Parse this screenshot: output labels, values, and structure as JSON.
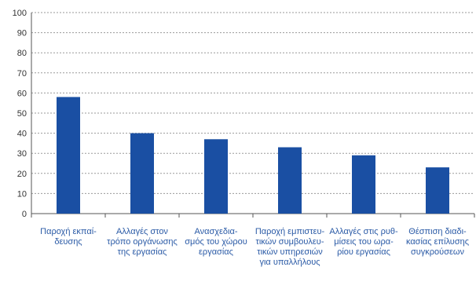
{
  "chart_data": {
    "type": "bar",
    "title": "",
    "xlabel": "",
    "ylabel": "",
    "ylim": [
      0,
      100
    ],
    "yticks": [
      0,
      10,
      20,
      30,
      40,
      50,
      60,
      70,
      80,
      90,
      100
    ],
    "grid": true,
    "bar_color": "#1a4fa3",
    "category_label_color": "#2a5aa6",
    "categories": [
      [
        "Παροχή εκπαί-",
        "δευσης"
      ],
      [
        "Αλλαγές στον",
        "τρόπο οργάνωσης",
        "της εργασίας"
      ],
      [
        "Ανασχεδια-",
        "σμός του χώρου",
        "εργασίας"
      ],
      [
        "Παροχή εμπιστευ-",
        "τικών συμβουλευ-",
        "τικών υπηρεσιών",
        "για υπαλλήλους"
      ],
      [
        "Αλλαγές στις ρυθ-",
        "μίσεις του ωρα-",
        "ρίου εργασίας"
      ],
      [
        "Θέσπιση διαδι-",
        "κασίας επίλυσης",
        "συγκρούσεων"
      ]
    ],
    "values": [
      58,
      40,
      37,
      33,
      29,
      23
    ]
  }
}
